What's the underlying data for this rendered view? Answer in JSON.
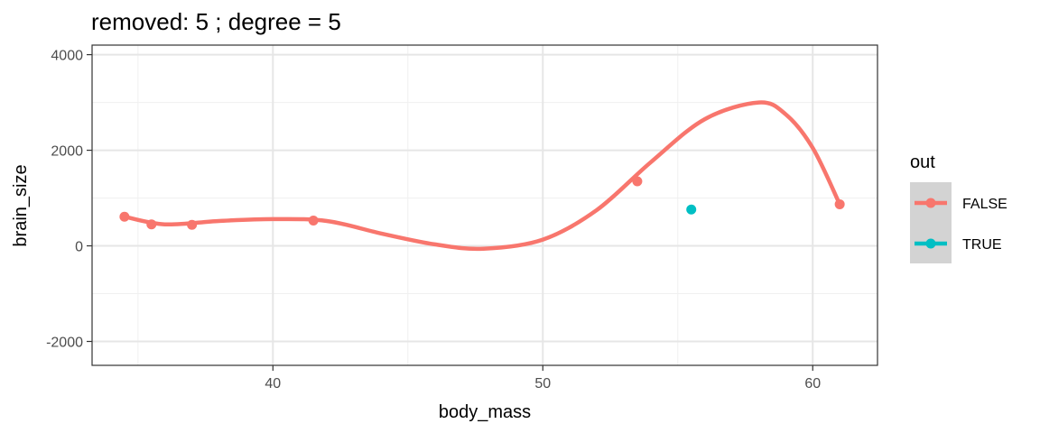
{
  "chart_data": {
    "type": "scatter",
    "title": "removed: 5  ;  degree = 5",
    "xlabel": "body_mass",
    "ylabel": "brain_size",
    "xlim": [
      33.3,
      62.4
    ],
    "ylim": [
      -2500,
      4200
    ],
    "x_ticks": [
      40,
      50,
      60
    ],
    "x_tick_labels": [
      "40",
      "50",
      "60"
    ],
    "y_ticks": [
      -2000,
      0,
      2000,
      4000
    ],
    "y_tick_labels": [
      "-2000",
      "0",
      "2000",
      "4000"
    ],
    "grid": true,
    "legend": {
      "title": "out",
      "position": "right",
      "entries": [
        {
          "label": "FALSE",
          "color": "#F8766D"
        },
        {
          "label": "TRUE",
          "color": "#00BFC4"
        }
      ]
    },
    "series": [
      {
        "name": "FALSE",
        "color": "#F8766D",
        "points": [
          {
            "x": 34.5,
            "y": 610
          },
          {
            "x": 35.5,
            "y": 450
          },
          {
            "x": 37.0,
            "y": 440
          },
          {
            "x": 41.5,
            "y": 530
          },
          {
            "x": 53.5,
            "y": 1350
          },
          {
            "x": 61.0,
            "y": 870
          }
        ],
        "fit_curve": {
          "degree": 5,
          "x": [
            34.5,
            36.0,
            38.0,
            40.0,
            42.0,
            44.0,
            46.0,
            47.8,
            50.0,
            52.0,
            54.0,
            56.0,
            58.0,
            59.0,
            60.0,
            61.0
          ],
          "y": [
            610,
            450,
            520,
            560,
            520,
            260,
            30,
            -60,
            130,
            750,
            1750,
            2650,
            3000,
            2750,
            2050,
            870
          ]
        }
      },
      {
        "name": "TRUE",
        "color": "#00BFC4",
        "points": [
          {
            "x": 55.5,
            "y": 760
          }
        ]
      }
    ]
  }
}
